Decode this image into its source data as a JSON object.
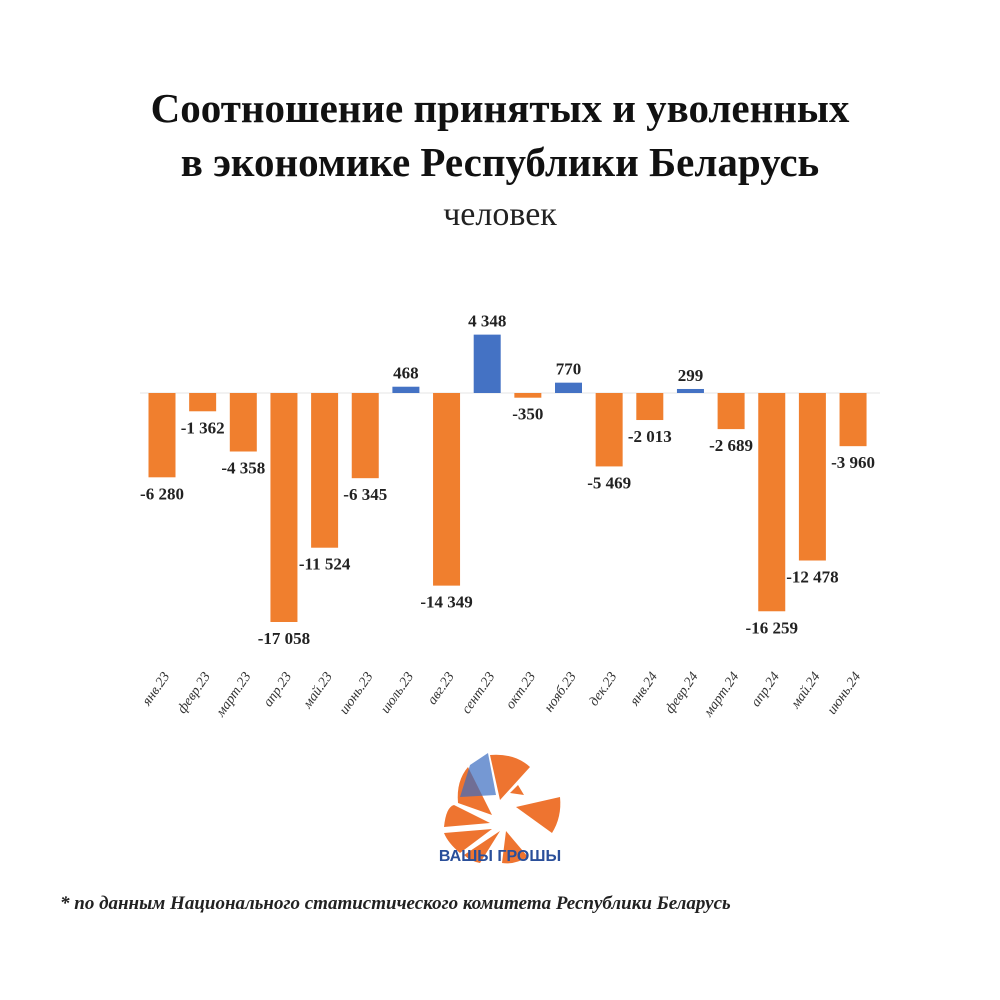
{
  "chart_data": {
    "type": "bar",
    "title": "Соотношение принятых и уволенных в экономике Республики Беларусь",
    "title_lines": [
      "Соотношение принятых и уволенных",
      "в экономике Республики Беларусь"
    ],
    "subtitle": "человек",
    "categories": [
      "янв.23",
      "февр.23",
      "март.23",
      "апр.23",
      "май.23",
      "июнь.23",
      "июль.23",
      "авг.23",
      "сент.23",
      "окт.23",
      "нояб.23",
      "дек.23",
      "янв.24",
      "февр.24",
      "март.24",
      "апр.24",
      "май.24",
      "июнь.24"
    ],
    "values": [
      -6280,
      -1362,
      -4358,
      -17058,
      -11524,
      -6345,
      468,
      -14349,
      4348,
      -350,
      770,
      -5469,
      -2013,
      299,
      -2689,
      -16259,
      -12478,
      -3960
    ],
    "data_labels": [
      "-6 280",
      "-1 362",
      "-4 358",
      "-17 058",
      "-11 524",
      "-6 345",
      "468",
      "-14 349",
      "4 348",
      "-350",
      "770",
      "-5 469",
      "-2 013",
      "299",
      "-2 689",
      "-16 259",
      "-12 478",
      "-3 960"
    ],
    "colors": {
      "negative": "#F07F2E",
      "positive": "#4472C4"
    },
    "grid": false,
    "xlabel": "",
    "ylabel": ""
  },
  "logo": {
    "text": "ВАШЫ ГРОШЫ"
  },
  "footnote": "* по данным Национального статистического комитета Республики Беларусь"
}
